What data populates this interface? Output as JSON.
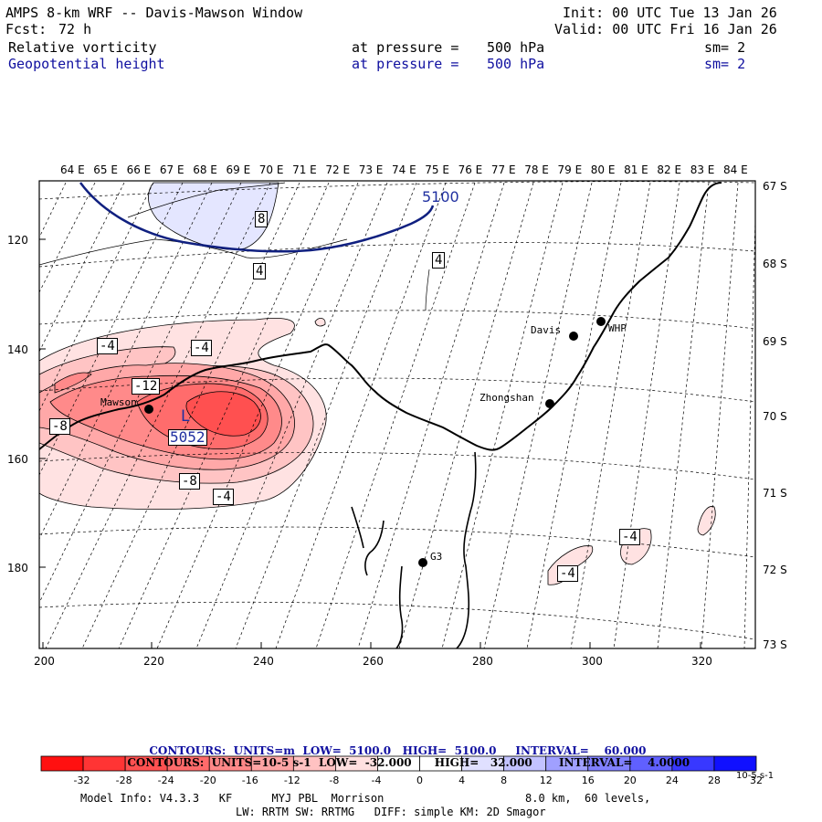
{
  "header": {
    "title": "AMPS 8-km WRF -- Davis-Mawson Window",
    "fcst_label": "Fcst:",
    "fcst_value": "72 h",
    "init": "Init: 00 UTC Tue 13 Jan 26",
    "valid": "Valid: 00 UTC Fri 16 Jan 26"
  },
  "fields": [
    {
      "name": "Relative vorticity",
      "level_label": "at pressure =",
      "level_value": "500 hPa",
      "smooth": "sm= 2",
      "color": "#000000"
    },
    {
      "name": "Geopotential height",
      "level_label": "at pressure =",
      "level_value": "500 hPa",
      "smooth": "sm= 2",
      "color": "#1010a0"
    }
  ],
  "map": {
    "top_lon_labels": [
      "64 E",
      "65 E",
      "66 E",
      "67 E",
      "68 E",
      "69 E",
      "70 E",
      "71 E",
      "72 E",
      "73 E",
      "74 E",
      "75 E",
      "76 E",
      "77 E",
      "78 E",
      "79 E",
      "80 E",
      "81 E",
      "82 E",
      "83 E",
      "84 E"
    ],
    "right_lat_labels": [
      "67 S",
      "68 S",
      "69 S",
      "70 S",
      "71 S",
      "72 S",
      "73 S"
    ],
    "left_grid_labels": [
      "120",
      "140",
      "160",
      "180"
    ],
    "bottom_grid_labels": [
      "200",
      "220",
      "240",
      "260",
      "280",
      "300",
      "320"
    ],
    "stations": [
      {
        "name": "Mawson",
        "marker": "filled-circle"
      },
      {
        "name": "Davis",
        "marker": "filled-circle"
      },
      {
        "name": "WHP",
        "marker": "filled-circle"
      },
      {
        "name": "Zhongshan",
        "marker": "filled-circle"
      },
      {
        "name": "G3",
        "marker": "filled-circle"
      }
    ],
    "low_marker": {
      "symbol": "L",
      "value": "5052"
    },
    "height_contour_label": "5100",
    "vorticity_labels": [
      "8",
      "4",
      "4",
      "-4",
      "-4",
      "-12",
      "-8",
      "-8",
      "-4",
      "-4",
      "-4"
    ]
  },
  "contour_info": [
    {
      "label": "CONTOURS:",
      "units": "UNITS=m",
      "low": "LOW=  5100.0",
      "high": "HIGH=  5100.0",
      "interval": "INTERVAL=    60.000",
      "color": "#1010a0"
    },
    {
      "label": "CONTOURS:",
      "units": "UNITS=10-5 s-1",
      "low": "LOW=  -32.000",
      "high": "HIGH=   32.000",
      "interval": "INTERVAL=    4.0000",
      "color": "#000000"
    }
  ],
  "colorbar": {
    "ticks": [
      "-32",
      "-28",
      "-24",
      "-20",
      "-16",
      "-12",
      "-8",
      "-4",
      "0",
      "4",
      "8",
      "12",
      "16",
      "20",
      "24",
      "28",
      "32"
    ],
    "units": "10-5 s-1",
    "colors": [
      "#ff1010",
      "#ff3434",
      "#ff5050",
      "#ff6a6a",
      "#ff8888",
      "#ffa4a4",
      "#ffc2c2",
      "#ffe0e0",
      "#ffffff",
      "#ffffff",
      "#e0e0ff",
      "#c2c2ff",
      "#a0a0ff",
      "#8080ff",
      "#6060ff",
      "#3838ff",
      "#1010ff"
    ]
  },
  "footer": {
    "line1_left": "Model Info: V4.3.3   KF      MYJ PBL  Morrison",
    "line1_right": "8.0 km,  60 levels,",
    "line2": "LW: RRTM SW: RRTMG   DIFF: simple KM: 2D Smagor"
  }
}
